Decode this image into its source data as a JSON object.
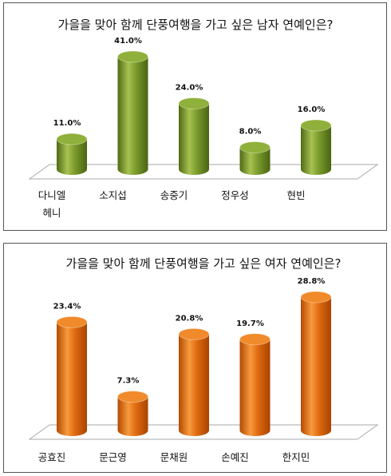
{
  "chart_data": [
    {
      "type": "bar",
      "title": "가을을 맞아 함께 단풍여행을 가고 싶은 남자 연예인은?",
      "categories": [
        [
          "다니엘",
          "헤니"
        ],
        [
          "소지섭"
        ],
        [
          "송중기"
        ],
        [
          "정우성"
        ],
        [
          "현빈"
        ]
      ],
      "values": [
        11.0,
        41.0,
        24.0,
        8.0,
        16.0
      ],
      "value_labels": [
        "11.0%",
        "41.0%",
        "24.0%",
        "8.0%",
        "16.0%"
      ],
      "bar_color": "#7a9a2c",
      "bar_highlight": "#a7c250",
      "bar_top": "#8fb03a",
      "grid": false,
      "legend": false
    },
    {
      "type": "bar",
      "title": "가을을 맞아 함께 단풍여행을 가고 싶은 여자 연예인은?",
      "categories": [
        [
          "공효진"
        ],
        [
          "문근영"
        ],
        [
          "문채원"
        ],
        [
          "손예진"
        ],
        [
          "한지민"
        ]
      ],
      "values": [
        23.4,
        7.3,
        20.8,
        19.7,
        28.8
      ],
      "value_labels": [
        "23.4%",
        "7.3%",
        "20.8%",
        "19.7%",
        "28.8%"
      ],
      "bar_color": "#e06a10",
      "bar_highlight": "#f79a3e",
      "bar_top": "#f08a2a",
      "grid": false,
      "legend": false
    }
  ]
}
